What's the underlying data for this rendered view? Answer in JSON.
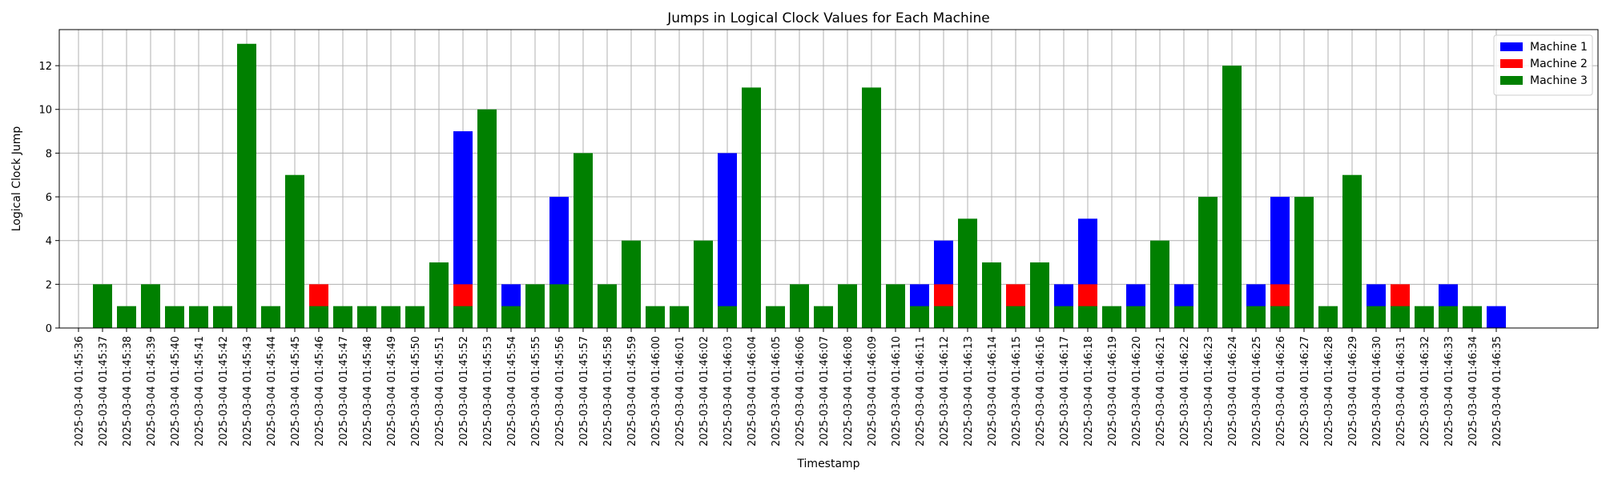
{
  "chart_data": {
    "type": "bar",
    "stacked": false,
    "title": "Jumps in Logical Clock Values for Each Machine",
    "xlabel": "Timestamp",
    "ylabel": "Logical Clock Jump",
    "ylim": [
      0,
      13.65
    ],
    "yticks": [
      0,
      2,
      4,
      6,
      8,
      10,
      12
    ],
    "grid": true,
    "legend_position": "top-right",
    "categories": [
      "2025-03-04 01:45:36",
      "2025-03-04 01:45:37",
      "2025-03-04 01:45:38",
      "2025-03-04 01:45:39",
      "2025-03-04 01:45:40",
      "2025-03-04 01:45:41",
      "2025-03-04 01:45:42",
      "2025-03-04 01:45:43",
      "2025-03-04 01:45:44",
      "2025-03-04 01:45:45",
      "2025-03-04 01:45:46",
      "2025-03-04 01:45:47",
      "2025-03-04 01:45:48",
      "2025-03-04 01:45:49",
      "2025-03-04 01:45:50",
      "2025-03-04 01:45:51",
      "2025-03-04 01:45:52",
      "2025-03-04 01:45:53",
      "2025-03-04 01:45:54",
      "2025-03-04 01:45:55",
      "2025-03-04 01:45:56",
      "2025-03-04 01:45:57",
      "2025-03-04 01:45:58",
      "2025-03-04 01:45:59",
      "2025-03-04 01:46:00",
      "2025-03-04 01:46:01",
      "2025-03-04 01:46:02",
      "2025-03-04 01:46:03",
      "2025-03-04 01:46:04",
      "2025-03-04 01:46:05",
      "2025-03-04 01:46:06",
      "2025-03-04 01:46:07",
      "2025-03-04 01:46:08",
      "2025-03-04 01:46:09",
      "2025-03-04 01:46:10",
      "2025-03-04 01:46:11",
      "2025-03-04 01:46:12",
      "2025-03-04 01:46:13",
      "2025-03-04 01:46:14",
      "2025-03-04 01:46:15",
      "2025-03-04 01:46:16",
      "2025-03-04 01:46:17",
      "2025-03-04 01:46:18",
      "2025-03-04 01:46:19",
      "2025-03-04 01:46:20",
      "2025-03-04 01:46:21",
      "2025-03-04 01:46:22",
      "2025-03-04 01:46:23",
      "2025-03-04 01:46:24",
      "2025-03-04 01:46:25",
      "2025-03-04 01:46:26",
      "2025-03-04 01:46:27",
      "2025-03-04 01:46:28",
      "2025-03-04 01:46:29",
      "2025-03-04 01:46:30",
      "2025-03-04 01:46:31",
      "2025-03-04 01:46:32",
      "2025-03-04 01:46:33",
      "2025-03-04 01:46:34",
      "2025-03-04 01:46:35"
    ],
    "series": [
      {
        "name": "Machine 1",
        "color": "#0000ff",
        "values": [
          null,
          null,
          null,
          null,
          null,
          null,
          null,
          null,
          null,
          null,
          null,
          null,
          null,
          null,
          null,
          null,
          9,
          null,
          2,
          null,
          6,
          null,
          null,
          null,
          null,
          null,
          null,
          8,
          null,
          null,
          null,
          null,
          null,
          null,
          null,
          2,
          4,
          null,
          null,
          null,
          null,
          2,
          5,
          null,
          2,
          null,
          2,
          null,
          null,
          2,
          6,
          null,
          null,
          null,
          2,
          null,
          null,
          2,
          null,
          1
        ]
      },
      {
        "name": "Machine 2",
        "color": "#ff0000",
        "values": [
          null,
          null,
          null,
          null,
          null,
          null,
          null,
          null,
          null,
          null,
          2,
          null,
          null,
          null,
          null,
          null,
          2,
          null,
          null,
          null,
          null,
          null,
          null,
          null,
          null,
          null,
          null,
          null,
          null,
          null,
          null,
          null,
          null,
          null,
          null,
          null,
          2,
          null,
          null,
          2,
          null,
          null,
          2,
          null,
          null,
          null,
          null,
          null,
          null,
          null,
          2,
          null,
          null,
          null,
          null,
          2,
          null,
          null,
          null,
          null
        ]
      },
      {
        "name": "Machine 3",
        "color": "#008000",
        "values": [
          null,
          2,
          1,
          2,
          1,
          1,
          1,
          13,
          1,
          7,
          1,
          1,
          1,
          1,
          1,
          3,
          1,
          10,
          1,
          2,
          2,
          8,
          2,
          4,
          1,
          1,
          4,
          1,
          11,
          1,
          2,
          1,
          2,
          11,
          2,
          1,
          1,
          5,
          3,
          1,
          3,
          1,
          1,
          1,
          1,
          4,
          1,
          6,
          12,
          1,
          1,
          6,
          1,
          7,
          1,
          1,
          1,
          1,
          1,
          null
        ]
      }
    ]
  }
}
